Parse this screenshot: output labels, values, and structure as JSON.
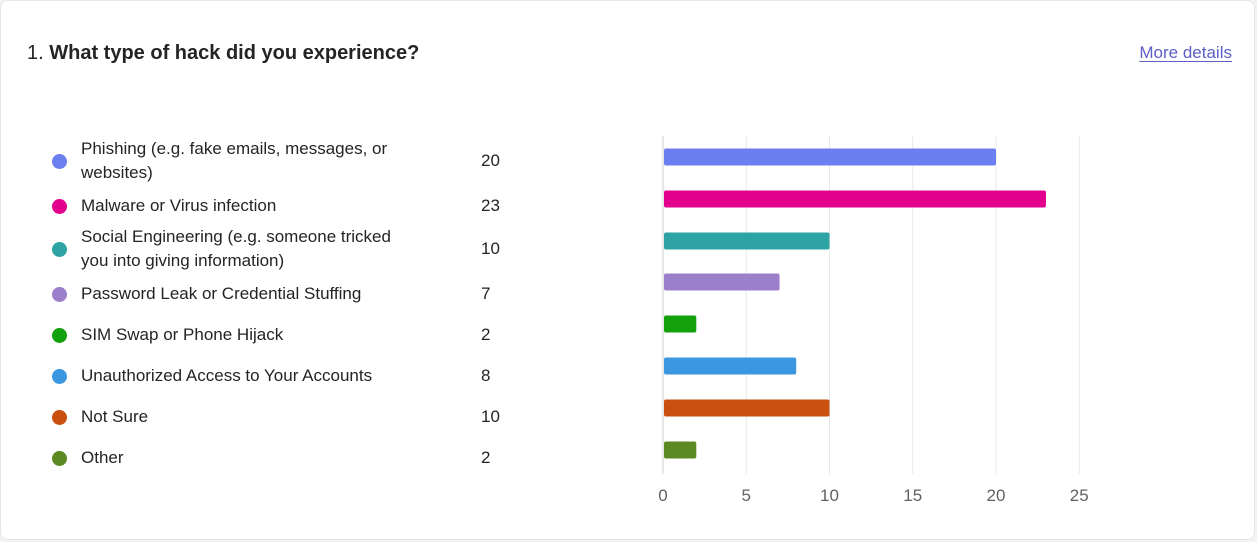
{
  "question": {
    "number": "1.",
    "text": "What type of hack did you experience?"
  },
  "more_details_label": "More details",
  "colors": {
    "link": "#5b5fc7",
    "series": [
      "#6b7ff0",
      "#e3008c",
      "#2ea3a3",
      "#9b7fcb",
      "#13a10e",
      "#3b97df",
      "#ca5010",
      "#5b8a22"
    ]
  },
  "chart_data": {
    "type": "bar",
    "orientation": "horizontal",
    "categories": [
      "Phishing (e.g. fake emails, messages, or websites)",
      "Malware or Virus infection",
      "Social Engineering (e.g. someone tricked you into giving information)",
      "Password Leak or Credential Stuffing",
      "SIM Swap or Phone Hijack",
      "Unauthorized Access to Your Accounts",
      "Not Sure",
      "Other"
    ],
    "values": [
      20,
      23,
      10,
      7,
      2,
      8,
      10,
      2
    ],
    "xlim": [
      0,
      25
    ],
    "xticks": [
      "0",
      "5",
      "10",
      "15",
      "20",
      "25"
    ],
    "grid": true,
    "legend": "left"
  }
}
